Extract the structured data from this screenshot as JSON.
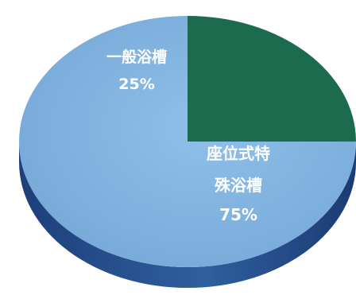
{
  "chart_data": {
    "type": "pie",
    "title": "",
    "slices": [
      {
        "label": "一般浴槽",
        "value": 25,
        "value_label": "25%",
        "color": "#1c6b4e"
      },
      {
        "label": "座位式特殊浴槽",
        "value": 75,
        "value_label": "75%",
        "color": "#7fb0df"
      }
    ],
    "style": "3d",
    "legend": "none",
    "labels_inside_slices": true
  }
}
